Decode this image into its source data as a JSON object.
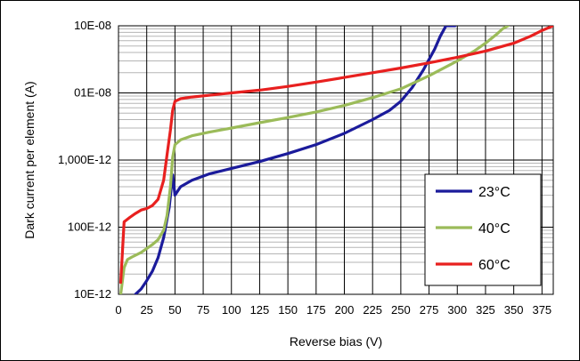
{
  "chart_data": {
    "type": "line",
    "xlabel": "Reverse bias (V)",
    "ylabel": "Dark current per element (A)",
    "xlim": [
      0,
      385
    ],
    "x_ticks": [
      0,
      25,
      50,
      75,
      100,
      125,
      150,
      175,
      200,
      225,
      250,
      275,
      300,
      325,
      350,
      375
    ],
    "y_scale": "log",
    "ylim": [
      1e-11,
      1e-07
    ],
    "y_ticks": [
      {
        "value": 1e-07,
        "label": "10E-08"
      },
      {
        "value": 1e-08,
        "label": "01E-08"
      },
      {
        "value": 1e-09,
        "label": "1,000E-12"
      },
      {
        "value": 1e-10,
        "label": "100E-12"
      },
      {
        "value": 1e-11,
        "label": "10E-12"
      }
    ],
    "grid": "on",
    "legend_position": "right",
    "series": [
      {
        "name": "23°C",
        "color": "#1b1b9b",
        "x": [
          15,
          20,
          25,
          30,
          35,
          40,
          45,
          48,
          50,
          55,
          65,
          80,
          100,
          125,
          150,
          175,
          200,
          225,
          240,
          250,
          260,
          270,
          280,
          285,
          290,
          295,
          298
        ],
        "y": [
          1e-11,
          1.2e-11,
          1.6e-11,
          2.2e-11,
          3.5e-11,
          7e-11,
          2e-10,
          6e-10,
          3e-10,
          4e-10,
          5e-10,
          6.2e-10,
          7.5e-10,
          9.5e-10,
          1.25e-09,
          1.7e-09,
          2.5e-09,
          4e-09,
          5.5e-09,
          7.5e-09,
          1.2e-08,
          2.2e-08,
          4.5e-08,
          7e-08,
          1e-07,
          1e-07,
          1e-07
        ]
      },
      {
        "name": "40°C",
        "color": "#9bbb59",
        "x": [
          2,
          5,
          8,
          12,
          20,
          30,
          35,
          40,
          43,
          46,
          48,
          50,
          55,
          65,
          80,
          100,
          125,
          150,
          175,
          200,
          225,
          250,
          275,
          300,
          315,
          325,
          335,
          340,
          345
        ],
        "y": [
          1e-11,
          2.5e-11,
          3.3e-11,
          3.6e-11,
          4.2e-11,
          5.5e-11,
          6.5e-11,
          9e-11,
          1.5e-10,
          4e-10,
          1.1e-09,
          1.7e-09,
          2e-09,
          2.3e-09,
          2.6e-09,
          3e-09,
          3.6e-09,
          4.3e-09,
          5.2e-09,
          6.5e-09,
          8.5e-09,
          1.15e-08,
          1.8e-08,
          3e-08,
          4.2e-08,
          5.5e-08,
          7.5e-08,
          9e-08,
          1e-07
        ]
      },
      {
        "name": "60°C",
        "color": "#e8201f",
        "x": [
          2,
          5,
          10,
          15,
          20,
          25,
          30,
          35,
          40,
          43,
          46,
          48,
          50,
          55,
          65,
          80,
          100,
          125,
          150,
          175,
          200,
          225,
          250,
          275,
          300,
          325,
          350,
          365,
          375,
          385
        ],
        "y": [
          1.5e-11,
          1.2e-10,
          1.4e-10,
          1.6e-10,
          1.8e-10,
          1.9e-10,
          2.1e-10,
          2.6e-10,
          5e-10,
          1.2e-09,
          2.8e-09,
          5.5e-09,
          7.5e-09,
          8.2e-09,
          8.7e-09,
          9.2e-09,
          1e-08,
          1.1e-08,
          1.25e-08,
          1.45e-08,
          1.7e-08,
          2e-08,
          2.35e-08,
          2.8e-08,
          3.4e-08,
          4.2e-08,
          5.5e-08,
          7e-08,
          8.5e-08,
          1e-07
        ]
      }
    ]
  }
}
